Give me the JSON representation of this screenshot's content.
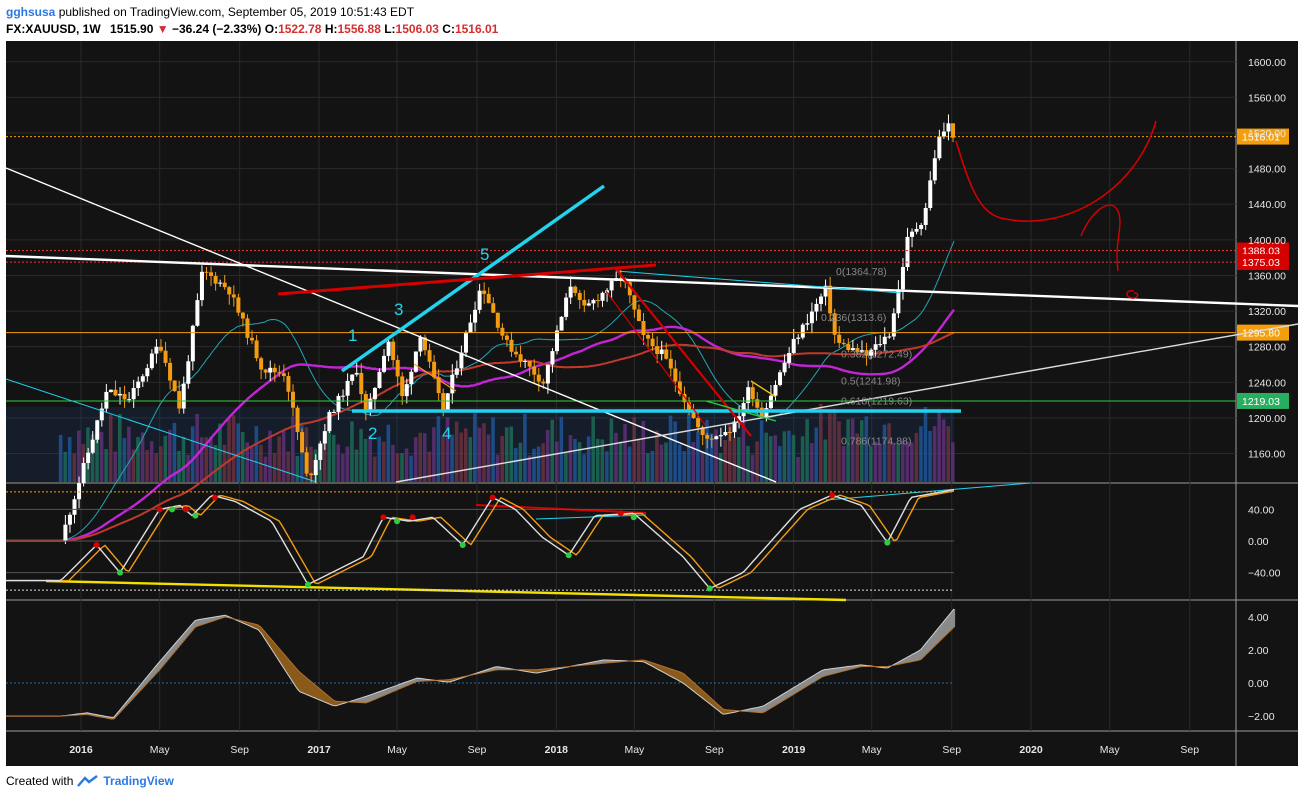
{
  "header": {
    "publisher": "gghsusa",
    "published_text": "published on TradingView.com, September 05, 2019 10:51:43 EDT",
    "symbol": "FX:XAUUSD, 1W",
    "last": "1515.90",
    "change": "−36.24 (−2.33%)",
    "o_label": "O:",
    "o": "1522.78",
    "h_label": "H:",
    "h": "1556.88",
    "l_label": "L:",
    "l": "1506.03",
    "c_label": "C:",
    "c": "1516.01"
  },
  "footer": {
    "created_with": "Created with",
    "brand": "TradingView",
    "logo_icon": "tradingview-logo-icon"
  },
  "colors": {
    "background": "#131313",
    "grid": "#2a2a2a",
    "bull": "#ffffff",
    "bear": "#f39c12",
    "cyan": "#22d3ee",
    "red": "#d50000",
    "magenta": "#c026d3",
    "price_tag": "#f59e0b",
    "support_tag": "#27ae60"
  },
  "chart_data": [
    {
      "type": "candlestick",
      "panel": "price",
      "x_tick_labels": [
        "2016",
        "May",
        "Sep",
        "2017",
        "May",
        "Sep",
        "2018",
        "May",
        "Sep",
        "2019",
        "May",
        "Sep",
        "2020",
        "May",
        "Sep"
      ],
      "y_tick_labels": [
        "1600.00",
        "1560.00",
        "1520.00",
        "1480.00",
        "1440.00",
        "1400.00",
        "1360.00",
        "1320.00",
        "1280.00",
        "1240.00",
        "1200.00",
        "1160.00"
      ],
      "ylim": [
        1128,
        1620
      ],
      "close_path": [
        [
          "2015-12-01",
          1062
        ],
        [
          "2016-02-10",
          1230
        ],
        [
          "2016-03-15",
          1220
        ],
        [
          "2016-05-01",
          1285
        ],
        [
          "2016-06-01",
          1210
        ],
        [
          "2016-07-06",
          1365
        ],
        [
          "2016-08-15",
          1345
        ],
        [
          "2016-10-06",
          1255
        ],
        [
          "2016-11-10",
          1250
        ],
        [
          "2016-12-15",
          1128
        ],
        [
          "2017-01-15",
          1200
        ],
        [
          "2017-02-28",
          1255
        ],
        [
          "2017-03-15",
          1200
        ],
        [
          "2017-04-17",
          1290
        ],
        [
          "2017-05-10",
          1220
        ],
        [
          "2017-06-06",
          1295
        ],
        [
          "2017-07-10",
          1208
        ],
        [
          "2017-09-08",
          1350
        ],
        [
          "2017-10-15",
          1285
        ],
        [
          "2017-12-12",
          1240
        ],
        [
          "2018-01-25",
          1355
        ],
        [
          "2018-02-10",
          1320
        ],
        [
          "2018-04-12",
          1360
        ],
        [
          "2018-05-15",
          1290
        ],
        [
          "2018-06-15",
          1270
        ],
        [
          "2018-08-16",
          1175
        ],
        [
          "2018-10-01",
          1190
        ],
        [
          "2018-10-25",
          1235
        ],
        [
          "2018-11-12",
          1202
        ],
        [
          "2019-01-01",
          1285
        ],
        [
          "2019-02-20",
          1345
        ],
        [
          "2019-03-07",
          1285
        ],
        [
          "2019-04-23",
          1270
        ],
        [
          "2019-05-28",
          1295
        ],
        [
          "2019-06-10",
          1340
        ],
        [
          "2019-06-25",
          1400
        ],
        [
          "2019-07-20",
          1425
        ],
        [
          "2019-08-10",
          1510
        ],
        [
          "2019-08-26",
          1530
        ],
        [
          "2019-09-05",
          1516.01
        ]
      ],
      "price_labels": [
        {
          "value": 1516.01,
          "text": "1516.01"
        },
        {
          "value": 1388.03,
          "text": "1388.03"
        },
        {
          "value": 1375.03,
          "text": "1375.03"
        },
        {
          "value": 1295.8,
          "text": "1295.80"
        },
        {
          "value": 1219.03,
          "text": "1219.03"
        }
      ],
      "fib_labels": [
        "0(1364.78)",
        "0.236(1313.6)",
        "0.382(1272.49)",
        "0.5(1241.98)",
        "0.618(1219.63)",
        "0.786(1174.88)"
      ],
      "wave_labels": [
        "1",
        "2",
        "3",
        "4",
        "5"
      ]
    },
    {
      "type": "line",
      "panel": "stochastic",
      "y_tick_labels": [
        "40.00",
        "0.00",
        "−40.00"
      ],
      "ylim": [
        -72,
        72
      ],
      "k_path": [
        [
          "2015-12-01",
          -50
        ],
        [
          "2016-01-25",
          -5
        ],
        [
          "2016-03-01",
          -40
        ],
        [
          "2016-05-01",
          40
        ],
        [
          "2016-06-01",
          45
        ],
        [
          "2016-06-20",
          32
        ],
        [
          "2016-07-20",
          58
        ],
        [
          "2016-08-25",
          50
        ],
        [
          "2016-10-20",
          25
        ],
        [
          "2016-12-15",
          -55
        ],
        [
          "2017-03-10",
          -20
        ],
        [
          "2017-04-10",
          30
        ],
        [
          "2017-05-20",
          25
        ],
        [
          "2017-06-25",
          30
        ],
        [
          "2017-08-10",
          -5
        ],
        [
          "2017-09-25",
          55
        ],
        [
          "2017-10-30",
          40
        ],
        [
          "2017-12-10",
          5
        ],
        [
          "2018-01-20",
          -18
        ],
        [
          "2018-03-01",
          32
        ],
        [
          "2018-04-30",
          35
        ],
        [
          "2018-07-15",
          -20
        ],
        [
          "2018-08-25",
          -60
        ],
        [
          "2018-10-15",
          -40
        ],
        [
          "2019-01-10",
          40
        ],
        [
          "2019-03-01",
          58
        ],
        [
          "2019-04-15",
          45
        ],
        [
          "2019-05-25",
          -2
        ],
        [
          "2019-06-30",
          55
        ],
        [
          "2019-09-05",
          65
        ]
      ]
    },
    {
      "type": "area",
      "panel": "momentum",
      "y_tick_labels": [
        "4.00",
        "2.00",
        "0.00",
        "−2.00"
      ],
      "ylim": [
        -2.9,
        4.9
      ],
      "fast_path": [
        [
          "2015-12-01",
          -2.0
        ],
        [
          "2016-01-10",
          -1.8
        ],
        [
          "2016-02-20",
          -2.1
        ],
        [
          "2016-05-01",
          1.3
        ],
        [
          "2016-06-25",
          3.8
        ],
        [
          "2016-08-10",
          4.1
        ],
        [
          "2016-10-01",
          3.2
        ],
        [
          "2016-12-01",
          -0.5
        ],
        [
          "2017-01-25",
          -1.4
        ],
        [
          "2017-03-15",
          -0.8
        ],
        [
          "2017-06-01",
          0.3
        ],
        [
          "2017-07-20",
          0.05
        ],
        [
          "2017-10-01",
          1.0
        ],
        [
          "2017-12-01",
          0.6
        ],
        [
          "2018-03-15",
          1.4
        ],
        [
          "2018-05-15",
          1.3
        ],
        [
          "2018-07-15",
          0.0
        ],
        [
          "2018-09-15",
          -1.9
        ],
        [
          "2018-11-15",
          -1.4
        ],
        [
          "2019-02-15",
          0.8
        ],
        [
          "2019-04-15",
          1.1
        ],
        [
          "2019-05-25",
          0.9
        ],
        [
          "2019-07-15",
          2.0
        ],
        [
          "2019-09-05",
          4.5
        ]
      ],
      "slow_path": [
        [
          "2015-12-01",
          -2.0
        ],
        [
          "2016-01-10",
          -1.9
        ],
        [
          "2016-02-20",
          -2.2
        ],
        [
          "2016-05-01",
          0.8
        ],
        [
          "2016-06-25",
          3.4
        ],
        [
          "2016-08-10",
          4.0
        ],
        [
          "2016-10-01",
          3.5
        ],
        [
          "2016-12-01",
          0.7
        ],
        [
          "2017-01-25",
          -1.1
        ],
        [
          "2017-03-15",
          -1.2
        ],
        [
          "2017-06-01",
          0.1
        ],
        [
          "2017-07-20",
          0.2
        ],
        [
          "2017-10-01",
          0.8
        ],
        [
          "2017-12-01",
          0.8
        ],
        [
          "2018-03-15",
          1.2
        ],
        [
          "2018-05-15",
          1.4
        ],
        [
          "2018-07-15",
          0.6
        ],
        [
          "2018-09-15",
          -1.6
        ],
        [
          "2018-11-15",
          -1.8
        ],
        [
          "2019-02-15",
          0.4
        ],
        [
          "2019-04-15",
          1.0
        ],
        [
          "2019-05-25",
          1.0
        ],
        [
          "2019-07-15",
          1.4
        ],
        [
          "2019-09-05",
          3.4
        ]
      ]
    }
  ]
}
